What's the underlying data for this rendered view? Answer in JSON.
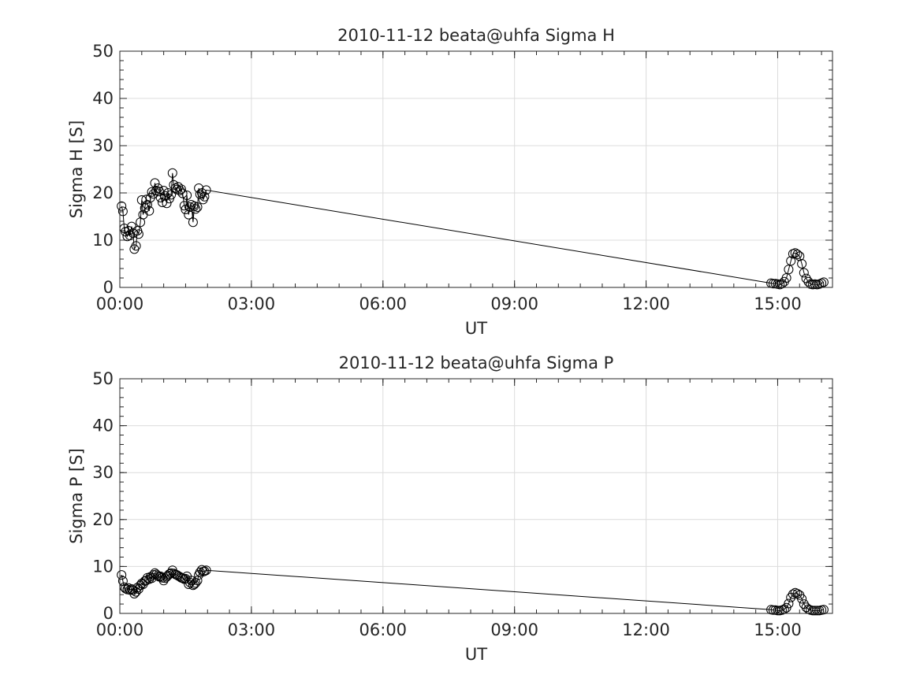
{
  "chart_data": [
    {
      "type": "scatter",
      "title": "2010-11-12  beata@uhfa Sigma H",
      "xlabel": "UT",
      "ylabel": "Sigma H [S]",
      "x_unit": "hours UT",
      "xlim": [
        0,
        16.25
      ],
      "ylim": [
        0,
        50
      ],
      "x_ticks": [
        0,
        3,
        6,
        9,
        12,
        15
      ],
      "x_tick_labels": [
        "00:00",
        "03:00",
        "06:00",
        "09:00",
        "12:00",
        "15:00"
      ],
      "y_ticks": [
        0,
        10,
        20,
        30,
        40,
        50
      ],
      "y_tick_labels": [
        "0",
        "10",
        "20",
        "30",
        "40",
        "50"
      ],
      "grid": true,
      "series": [
        {
          "marker": "circle",
          "line": true,
          "x": [
            0.04,
            0.07,
            0.1,
            0.13,
            0.17,
            0.2,
            0.23,
            0.27,
            0.3,
            0.33,
            0.37,
            0.4,
            0.43,
            0.47,
            0.5,
            0.53,
            0.57,
            0.6,
            0.63,
            0.67,
            0.7,
            0.73,
            0.77,
            0.8,
            0.83,
            0.87,
            0.9,
            0.93,
            0.97,
            1.0,
            1.03,
            1.07,
            1.1,
            1.13,
            1.17,
            1.2,
            1.23,
            1.27,
            1.3,
            1.33,
            1.37,
            1.4,
            1.43,
            1.47,
            1.5,
            1.53,
            1.57,
            1.6,
            1.63,
            1.67,
            1.7,
            1.73,
            1.77,
            1.8,
            1.83,
            1.87,
            1.9,
            1.93,
            1.97,
            14.85,
            14.9,
            14.95,
            15.0,
            15.05,
            15.1,
            15.15,
            15.2,
            15.25,
            15.3,
            15.35,
            15.4,
            15.45,
            15.5,
            15.55,
            15.6,
            15.65,
            15.7,
            15.75,
            15.8,
            15.85,
            15.9,
            15.95,
            16.0,
            16.05
          ],
          "y": [
            17.2,
            16.1,
            12.5,
            11.8,
            10.8,
            12.0,
            11.0,
            12.9,
            11.5,
            8.1,
            8.8,
            12.0,
            11.3,
            13.8,
            18.5,
            15.4,
            16.8,
            18.6,
            17.5,
            16.2,
            19.0,
            20.2,
            19.8,
            22.1,
            20.5,
            21.0,
            20.3,
            19.0,
            18.0,
            20.5,
            19.4,
            17.8,
            20.0,
            18.8,
            19.6,
            24.2,
            21.7,
            21.0,
            20.7,
            21.3,
            20.5,
            20.8,
            19.9,
            17.3,
            16.5,
            19.5,
            15.4,
            17.0,
            17.5,
            13.8,
            17.2,
            16.6,
            17.0,
            21.0,
            19.7,
            20.0,
            18.6,
            19.2,
            20.6,
            0.9,
            0.8,
            0.8,
            0.7,
            0.6,
            0.8,
            1.2,
            2.0,
            3.8,
            5.6,
            7.1,
            7.3,
            7.0,
            6.6,
            5.0,
            3.1,
            1.9,
            1.2,
            0.7,
            0.6,
            0.7,
            0.6,
            0.7,
            0.9,
            1.1
          ]
        }
      ]
    },
    {
      "type": "scatter",
      "title": "2010-11-12  beata@uhfa Sigma P",
      "xlabel": "UT",
      "ylabel": "Sigma P [S]",
      "x_unit": "hours UT",
      "xlim": [
        0,
        16.25
      ],
      "ylim": [
        0,
        50
      ],
      "x_ticks": [
        0,
        3,
        6,
        9,
        12,
        15
      ],
      "x_tick_labels": [
        "00:00",
        "03:00",
        "06:00",
        "09:00",
        "12:00",
        "15:00"
      ],
      "y_ticks": [
        0,
        10,
        20,
        30,
        40,
        50
      ],
      "y_tick_labels": [
        "0",
        "10",
        "20",
        "30",
        "40",
        "50"
      ],
      "grid": true,
      "series": [
        {
          "marker": "circle",
          "line": true,
          "x": [
            0.04,
            0.07,
            0.1,
            0.13,
            0.17,
            0.2,
            0.23,
            0.27,
            0.3,
            0.33,
            0.37,
            0.4,
            0.43,
            0.47,
            0.5,
            0.53,
            0.57,
            0.6,
            0.63,
            0.67,
            0.7,
            0.73,
            0.77,
            0.8,
            0.83,
            0.87,
            0.9,
            0.93,
            0.97,
            1.0,
            1.03,
            1.07,
            1.1,
            1.13,
            1.17,
            1.2,
            1.23,
            1.27,
            1.3,
            1.33,
            1.37,
            1.4,
            1.43,
            1.47,
            1.5,
            1.53,
            1.57,
            1.6,
            1.63,
            1.67,
            1.7,
            1.73,
            1.77,
            1.8,
            1.83,
            1.87,
            1.9,
            1.93,
            1.97,
            14.85,
            14.9,
            14.95,
            15.0,
            15.05,
            15.1,
            15.15,
            15.2,
            15.25,
            15.3,
            15.35,
            15.4,
            15.45,
            15.5,
            15.55,
            15.6,
            15.65,
            15.7,
            15.75,
            15.8,
            15.85,
            15.9,
            15.95,
            16.0,
            16.05
          ],
          "y": [
            8.2,
            6.9,
            5.6,
            5.3,
            5.1,
            5.4,
            5.0,
            5.2,
            4.9,
            4.2,
            4.6,
            5.5,
            5.2,
            6.0,
            6.4,
            6.2,
            6.9,
            7.0,
            7.6,
            7.3,
            7.8,
            7.5,
            8.2,
            8.6,
            8.3,
            8.0,
            7.8,
            7.9,
            7.6,
            7.0,
            7.5,
            7.8,
            8.1,
            8.4,
            8.6,
            9.2,
            8.5,
            8.3,
            8.2,
            8.0,
            7.8,
            7.6,
            7.5,
            7.3,
            7.4,
            7.9,
            6.2,
            6.6,
            7.0,
            6.0,
            6.2,
            6.5,
            7.0,
            8.2,
            8.8,
            9.3,
            8.9,
            9.0,
            9.2,
            0.8,
            0.7,
            0.7,
            0.6,
            0.6,
            0.7,
            0.9,
            1.2,
            2.1,
            3.4,
            4.1,
            4.4,
            4.2,
            3.9,
            3.1,
            2.0,
            1.3,
            0.9,
            0.7,
            0.6,
            0.6,
            0.6,
            0.6,
            0.7,
            0.8
          ]
        }
      ]
    }
  ]
}
